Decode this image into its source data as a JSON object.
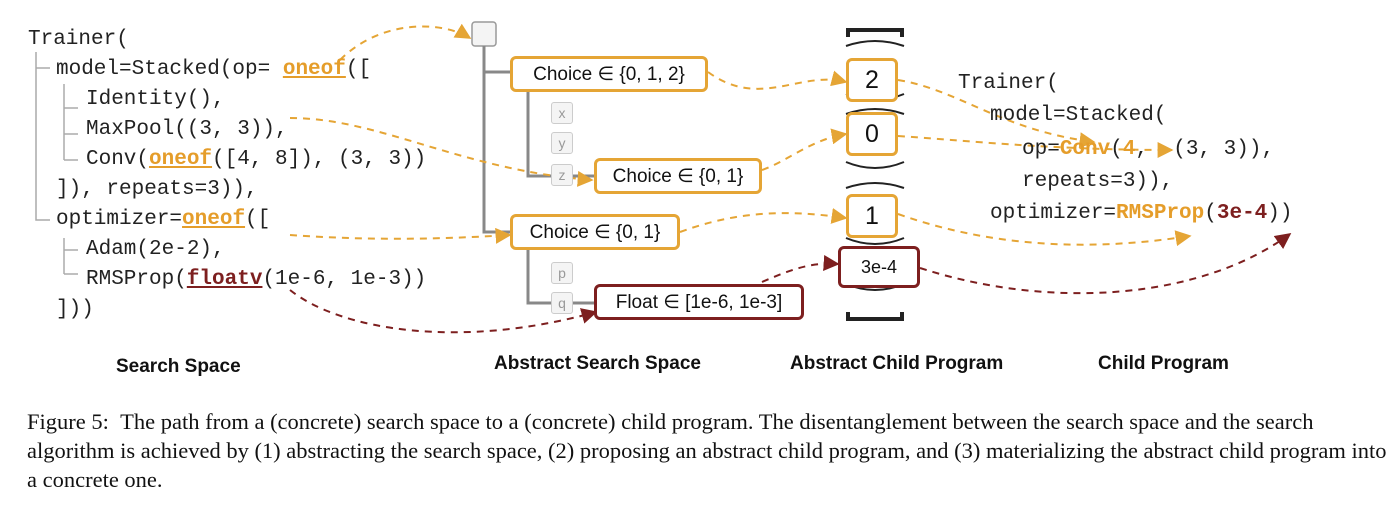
{
  "search_space": {
    "title": "Search Space",
    "lines": [
      [
        "Trainer("
      ],
      [
        "model=Stacked(op= ",
        {
          "kw": "oneof"
        },
        "(["
      ],
      [
        "Identity(),"
      ],
      [
        "MaxPool((3, 3)),"
      ],
      [
        "Conv(",
        {
          "kw": "oneof"
        },
        "([4, 8]), (3, 3))"
      ],
      [
        "]), repeats=3)),"
      ],
      [
        "optimizer=",
        {
          "kw": "oneof"
        },
        "(["
      ],
      [
        "Adam(2e-2),"
      ],
      [
        "RMSProp(",
        {
          "kwred": "floatv"
        },
        "(1e-6, 1e-3))"
      ],
      [
        "]))"
      ]
    ]
  },
  "abstract_search_space": {
    "title": "Abstract Search Space",
    "choice1": "Choice ∈ {0, 1, 2}",
    "choice2": "Choice ∈ {0, 1}",
    "choice3": "Choice ∈ {0, 1}",
    "float1": "Float ∈ [1e-6, 1e-3]",
    "leaves": {
      "x": "x",
      "y": "y",
      "z": "z",
      "p": "p",
      "q": "q"
    }
  },
  "abstract_child_program": {
    "title": "Abstract Child Program",
    "values": [
      "2",
      "0",
      "1",
      "3e-4"
    ]
  },
  "child_program": {
    "title": "Child Program",
    "lines": [
      [
        "Trainer("
      ],
      [
        "model=Stacked("
      ],
      [
        "op=",
        {
          "or": "Conv"
        },
        "(",
        {
          "or": "4"
        },
        ",  (3, 3)),"
      ],
      [
        "repeats=3)),"
      ],
      [
        "optimizer=",
        {
          "or": "RMSProp"
        },
        "(",
        {
          "red": "3e-4"
        },
        "))"
      ]
    ]
  },
  "caption": {
    "label": "Figure 5:",
    "text": "The path from a (concrete) search space to a (concrete) child program. The disentanglement between the search space and the search algorithm is achieved by (1) abstracting the search space, (2) proposing an abstract child program, and (3) materializing the abstract child program into a concrete one."
  },
  "colors": {
    "orange": "#e5a535",
    "dark_red": "#7d1f1f",
    "tree_line": "#888888"
  }
}
